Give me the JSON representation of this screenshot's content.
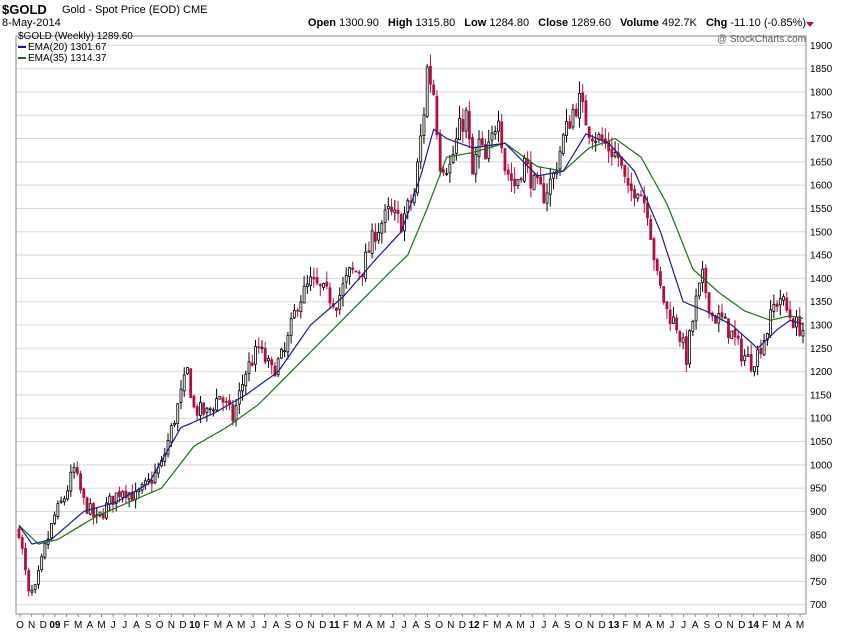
{
  "header": {
    "symbol": "$GOLD",
    "description": "Gold - Spot Price (EOD) CME",
    "date": "8-May-2014",
    "open_label": "Open",
    "open": "1300.90",
    "high_label": "High",
    "high": "1315.80",
    "low_label": "Low",
    "low": "1284.80",
    "close_label": "Close",
    "close": "1289.60",
    "volume_label": "Volume",
    "volume": "492.7K",
    "chg_label": "Chg",
    "chg": "-11.10 (-0.85%)",
    "credit": "@ StockCharts.com"
  },
  "legend": [
    {
      "label": "$GOLD (Weekly) 1289.60",
      "color": "#000000"
    },
    {
      "label": "EMA(20) 1301.67",
      "color": "#1a1a8c"
    },
    {
      "label": "EMA(35) 1314.37",
      "color": "#1a6e1a"
    }
  ],
  "colors": {
    "up": "#000000",
    "down": "#b0103e",
    "ema20": "#1a1a8c",
    "ema35": "#1a6e1a",
    "grid": "#d8d8d8"
  },
  "chart_data": {
    "type": "candlestick",
    "title": "$GOLD",
    "ylim": [
      680,
      1920
    ],
    "yticks": [
      700,
      750,
      800,
      850,
      900,
      950,
      1000,
      1050,
      1100,
      1150,
      1200,
      1250,
      1300,
      1350,
      1400,
      1450,
      1500,
      1550,
      1600,
      1650,
      1700,
      1750,
      1800,
      1850,
      1900
    ],
    "grid": true,
    "xtick_labels": [
      "O",
      "N",
      "D",
      "09",
      "F",
      "M",
      "A",
      "M",
      "J",
      "J",
      "A",
      "S",
      "O",
      "N",
      "D",
      "10",
      "F",
      "M",
      "A",
      "M",
      "J",
      "J",
      "A",
      "S",
      "O",
      "N",
      "D",
      "11",
      "F",
      "M",
      "A",
      "M",
      "J",
      "J",
      "A",
      "S",
      "O",
      "N",
      "D",
      "12",
      "F",
      "M",
      "A",
      "M",
      "J",
      "J",
      "A",
      "S",
      "O",
      "N",
      "D",
      "13",
      "F",
      "M",
      "A",
      "M",
      "J",
      "J",
      "A",
      "S",
      "O",
      "N",
      "D",
      "14",
      "F",
      "M",
      "A",
      "M"
    ],
    "year_labels": [
      "09",
      "10",
      "11",
      "12",
      "13",
      "14"
    ],
    "price_path": [
      [
        0,
        860
      ],
      [
        3,
        720
      ],
      [
        5,
        730
      ],
      [
        8,
        820
      ],
      [
        11,
        890
      ],
      [
        14,
        930
      ],
      [
        17,
        990
      ],
      [
        20,
        920
      ],
      [
        24,
        880
      ],
      [
        28,
        920
      ],
      [
        32,
        950
      ],
      [
        36,
        930
      ],
      [
        40,
        960
      ],
      [
        44,
        1000
      ],
      [
        48,
        1100
      ],
      [
        52,
        1200
      ],
      [
        54,
        1120
      ],
      [
        58,
        1110
      ],
      [
        62,
        1150
      ],
      [
        66,
        1100
      ],
      [
        70,
        1200
      ],
      [
        74,
        1250
      ],
      [
        78,
        1200
      ],
      [
        82,
        1240
      ],
      [
        86,
        1350
      ],
      [
        90,
        1390
      ],
      [
        94,
        1370
      ],
      [
        98,
        1350
      ],
      [
        102,
        1410
      ],
      [
        106,
        1420
      ],
      [
        110,
        1500
      ],
      [
        114,
        1540
      ],
      [
        118,
        1520
      ],
      [
        122,
        1580
      ],
      [
        125,
        1760
      ],
      [
        126,
        1850
      ],
      [
        128,
        1800
      ],
      [
        130,
        1650
      ],
      [
        133,
        1640
      ],
      [
        136,
        1720
      ],
      [
        138,
        1750
      ],
      [
        140,
        1620
      ],
      [
        142,
        1690
      ],
      [
        144,
        1650
      ],
      [
        146,
        1700
      ],
      [
        148,
        1760
      ],
      [
        150,
        1640
      ],
      [
        153,
        1600
      ],
      [
        156,
        1650
      ],
      [
        159,
        1600
      ],
      [
        162,
        1580
      ],
      [
        165,
        1620
      ],
      [
        168,
        1700
      ],
      [
        171,
        1760
      ],
      [
        173,
        1780
      ],
      [
        176,
        1720
      ],
      [
        179,
        1700
      ],
      [
        182,
        1680
      ],
      [
        185,
        1660
      ],
      [
        188,
        1580
      ],
      [
        191,
        1600
      ],
      [
        194,
        1550
      ],
      [
        197,
        1400
      ],
      [
        200,
        1330
      ],
      [
        203,
        1300
      ],
      [
        206,
        1230
      ],
      [
        209,
        1350
      ],
      [
        211,
        1400
      ],
      [
        214,
        1320
      ],
      [
        217,
        1310
      ],
      [
        220,
        1280
      ],
      [
        223,
        1240
      ],
      [
        226,
        1220
      ],
      [
        228,
        1240
      ],
      [
        231,
        1290
      ],
      [
        233,
        1340
      ],
      [
        235,
        1360
      ],
      [
        237,
        1330
      ],
      [
        240,
        1300
      ],
      [
        242,
        1290
      ]
    ],
    "ema20_path": [
      [
        0,
        870
      ],
      [
        4,
        830
      ],
      [
        10,
        840
      ],
      [
        20,
        900
      ],
      [
        30,
        920
      ],
      [
        40,
        960
      ],
      [
        50,
        1080
      ],
      [
        60,
        1110
      ],
      [
        70,
        1150
      ],
      [
        80,
        1200
      ],
      [
        90,
        1300
      ],
      [
        100,
        1360
      ],
      [
        110,
        1440
      ],
      [
        118,
        1500
      ],
      [
        124,
        1620
      ],
      [
        128,
        1720
      ],
      [
        132,
        1700
      ],
      [
        140,
        1680
      ],
      [
        150,
        1690
      ],
      [
        160,
        1620
      ],
      [
        168,
        1630
      ],
      [
        175,
        1710
      ],
      [
        182,
        1690
      ],
      [
        190,
        1630
      ],
      [
        198,
        1500
      ],
      [
        205,
        1350
      ],
      [
        212,
        1330
      ],
      [
        220,
        1300
      ],
      [
        228,
        1250
      ],
      [
        234,
        1290
      ],
      [
        238,
        1310
      ],
      [
        242,
        1302
      ]
    ],
    "ema35_path": [
      [
        0,
        870
      ],
      [
        6,
        830
      ],
      [
        12,
        840
      ],
      [
        24,
        890
      ],
      [
        34,
        920
      ],
      [
        44,
        950
      ],
      [
        54,
        1040
      ],
      [
        64,
        1080
      ],
      [
        74,
        1130
      ],
      [
        84,
        1200
      ],
      [
        94,
        1270
      ],
      [
        104,
        1340
      ],
      [
        114,
        1410
      ],
      [
        120,
        1450
      ],
      [
        126,
        1550
      ],
      [
        132,
        1660
      ],
      [
        140,
        1670
      ],
      [
        150,
        1690
      ],
      [
        160,
        1640
      ],
      [
        168,
        1630
      ],
      [
        176,
        1680
      ],
      [
        184,
        1700
      ],
      [
        192,
        1660
      ],
      [
        200,
        1560
      ],
      [
        208,
        1420
      ],
      [
        216,
        1370
      ],
      [
        224,
        1330
      ],
      [
        232,
        1310
      ],
      [
        238,
        1320
      ],
      [
        242,
        1314
      ]
    ]
  }
}
